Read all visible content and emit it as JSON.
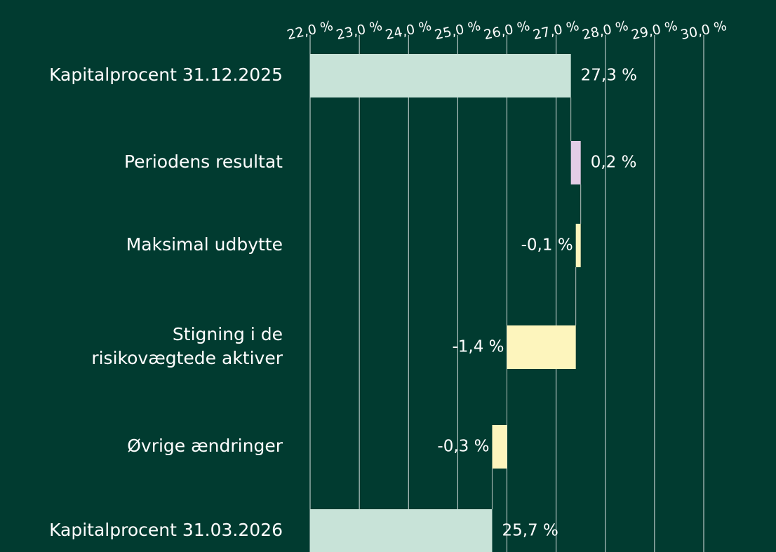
{
  "chart_data": {
    "type": "waterfall",
    "categories": [
      "Kapitalprocent 31.12.2025",
      "Periodens resultat",
      "Maksimal udbytte",
      "Stigning i de\nrisikovægtede aktiver",
      "Øvrige ændringer",
      "Kapitalprocent 31.03.2026"
    ],
    "measures": [
      "total",
      "relative",
      "relative",
      "relative",
      "relative",
      "total"
    ],
    "values": [
      27.3,
      0.2,
      -0.1,
      -1.4,
      -0.3,
      25.7
    ],
    "value_labels": [
      "27,3 %",
      "0,2 %",
      "-0,1 %",
      "-1,4 %",
      "-0,3 %",
      "25,7 %"
    ],
    "colors": {
      "total": "#c8e3d8",
      "increase": "#e3cde6",
      "decrease": "#fdf5bd"
    },
    "xlim": [
      22,
      30
    ],
    "xticks": [
      {
        "value": 22,
        "label": "22,0 %"
      },
      {
        "value": 23,
        "label": "23,0 %"
      },
      {
        "value": 24,
        "label": "24,0 %"
      },
      {
        "value": 25,
        "label": "25,0 %"
      },
      {
        "value": 26,
        "label": "26,0 %"
      },
      {
        "value": 27,
        "label": "27,0 %"
      },
      {
        "value": 28,
        "label": "28,0 %"
      },
      {
        "value": 29,
        "label": "29,0 %"
      },
      {
        "value": 30,
        "label": "30,0 %"
      }
    ],
    "grid": true
  }
}
